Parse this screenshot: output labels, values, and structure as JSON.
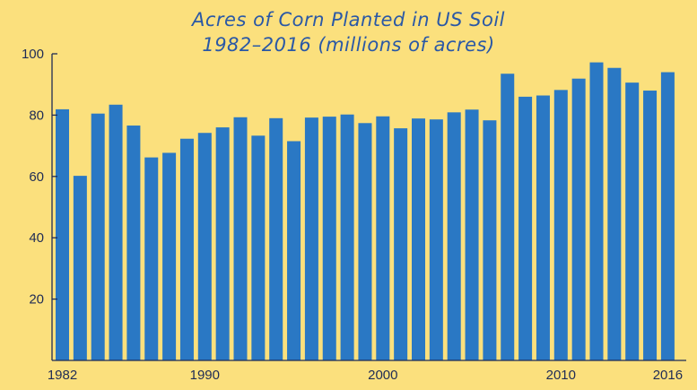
{
  "chart_data": {
    "type": "bar",
    "title_line1": "Acres of Corn Planted in US Soil",
    "title_line2": "1982–2016 (millions of acres)",
    "xlabel": "",
    "ylabel": "",
    "ylim": [
      0,
      100
    ],
    "yticks": [
      20,
      40,
      60,
      80,
      100
    ],
    "xtick_labels": [
      "1982",
      "1990",
      "2000",
      "2010",
      "2016"
    ],
    "categories": [
      1982,
      1983,
      1984,
      1985,
      1986,
      1987,
      1988,
      1989,
      1990,
      1991,
      1992,
      1993,
      1994,
      1995,
      1996,
      1997,
      1998,
      1999,
      2000,
      2001,
      2002,
      2003,
      2004,
      2005,
      2006,
      2007,
      2008,
      2009,
      2010,
      2011,
      2012,
      2013,
      2014,
      2015,
      2016
    ],
    "values": [
      81.9,
      60.2,
      80.5,
      83.4,
      76.6,
      66.2,
      67.7,
      72.3,
      74.2,
      76.0,
      79.3,
      73.3,
      79.0,
      71.5,
      79.2,
      79.5,
      80.2,
      77.4,
      79.6,
      75.7,
      78.9,
      78.6,
      80.9,
      81.8,
      78.3,
      93.5,
      86.0,
      86.4,
      88.2,
      91.9,
      97.2,
      95.4,
      90.6,
      88.0,
      94.0
    ],
    "bar_color": "#2a78c4",
    "background": "#fbe07d",
    "title_color": "#2a58a6",
    "grid": false
  }
}
